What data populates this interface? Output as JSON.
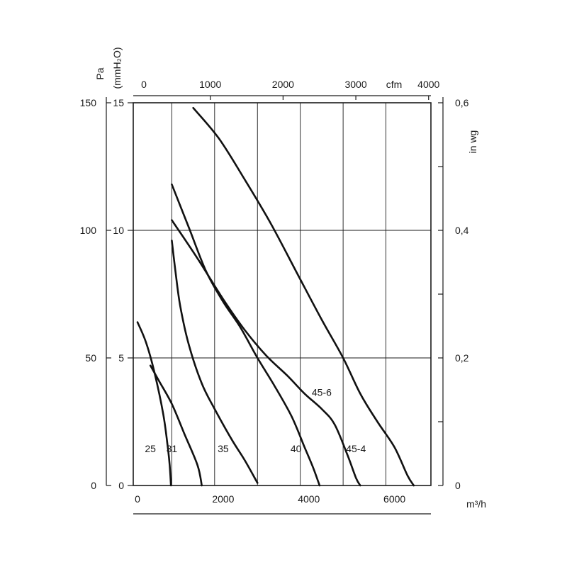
{
  "chart_data": {
    "type": "line",
    "x_axis": {
      "label": "m³/h",
      "min": -100,
      "max": 6850,
      "ticks": [
        0,
        2000,
        4000,
        6000
      ],
      "tick_labels": [
        "0",
        "2000",
        "4000",
        "6000"
      ],
      "vertical_grid": [
        800,
        1800,
        2800,
        3800,
        4800,
        5800
      ]
    },
    "x2_axis": {
      "label": "cfm",
      "ticks": [
        0,
        1000,
        2000,
        3000,
        4000
      ],
      "tick_labels": [
        "0",
        "1000",
        "2000",
        "3000",
        "4000"
      ],
      "unit_to_x": 1.699
    },
    "y_axis_pa": {
      "label": "Pa",
      "min": 0,
      "max": 150,
      "ticks": [
        0,
        50,
        100,
        150
      ],
      "tick_labels": [
        "0",
        "50",
        "100",
        "150"
      ]
    },
    "y_axis_mmh2o": {
      "label": "(mmH₂O)",
      "ticks": [
        0,
        5,
        10,
        15
      ],
      "tick_labels": [
        "0",
        "5",
        "10",
        "15"
      ],
      "unit_to_pa": 10
    },
    "y_axis_inwg": {
      "label": "in wg",
      "ticks": [
        0,
        0.1,
        0.2,
        0.3,
        0.4,
        0.5,
        0.6
      ],
      "tick_labels": [
        "0",
        "",
        "0,2",
        "",
        "0,4",
        "",
        "0,6"
      ],
      "unit_to_pa": 250
    },
    "horizontal_grid_pa": [
      50,
      100
    ],
    "series": [
      {
        "name": "25",
        "label_at": [
          300,
          12
        ],
        "points": [
          [
            0,
            64
          ],
          [
            200,
            56
          ],
          [
            400,
            44
          ],
          [
            600,
            28
          ],
          [
            700,
            16
          ],
          [
            750,
            8
          ],
          [
            780,
            0
          ]
        ]
      },
      {
        "name": "31",
        "label_at": [
          800,
          12
        ],
        "points": [
          [
            300,
            47
          ],
          [
            500,
            41
          ],
          [
            800,
            32
          ],
          [
            1100,
            20
          ],
          [
            1400,
            8
          ],
          [
            1500,
            0
          ]
        ]
      },
      {
        "name": "35",
        "label_at": [
          2000,
          12
        ],
        "points": [
          [
            800,
            96
          ],
          [
            900,
            82
          ],
          [
            1000,
            70
          ],
          [
            1200,
            55
          ],
          [
            1500,
            40
          ],
          [
            1800,
            30
          ],
          [
            2200,
            18
          ],
          [
            2500,
            10
          ],
          [
            2800,
            1
          ]
        ]
      },
      {
        "name": "40",
        "label_at": [
          3700,
          12
        ],
        "points": [
          [
            800,
            118
          ],
          [
            1200,
            101
          ],
          [
            1600,
            84
          ],
          [
            2000,
            72
          ],
          [
            2400,
            62
          ],
          [
            2800,
            50
          ],
          [
            3200,
            39
          ],
          [
            3600,
            27
          ],
          [
            3900,
            15
          ],
          [
            4100,
            7
          ],
          [
            4250,
            0
          ]
        ]
      },
      {
        "name": "45-6",
        "label_at": [
          4300,
          34
        ],
        "points": [
          [
            800,
            104
          ],
          [
            1400,
            89
          ],
          [
            2000,
            73
          ],
          [
            2500,
            61
          ],
          [
            3000,
            51
          ],
          [
            3500,
            43
          ],
          [
            3900,
            36
          ],
          [
            4300,
            30
          ],
          [
            4600,
            24
          ],
          [
            4900,
            12
          ],
          [
            5100,
            3
          ],
          [
            5200,
            0
          ]
        ]
      },
      {
        "name": "45-4",
        "label_at": [
          5100,
          12
        ],
        "points": [
          [
            1300,
            148
          ],
          [
            1900,
            136
          ],
          [
            2500,
            120
          ],
          [
            3100,
            103
          ],
          [
            3700,
            84
          ],
          [
            4300,
            65
          ],
          [
            4800,
            50
          ],
          [
            5200,
            36
          ],
          [
            5600,
            25
          ],
          [
            6000,
            15
          ],
          [
            6300,
            4
          ],
          [
            6450,
            0
          ]
        ]
      }
    ]
  }
}
